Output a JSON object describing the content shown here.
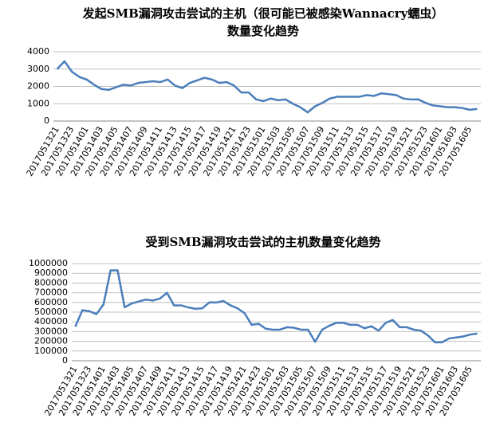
{
  "chart_data": [
    {
      "type": "line",
      "title": [
        "发起SMB漏洞攻击尝试的主机（很可能已被感染Wannacry蠕虫）",
        "数量变化趋势"
      ],
      "categories": [
        "2017051321",
        null,
        "2017051323",
        null,
        "2017051401",
        null,
        "2017051403",
        null,
        "2017051405",
        null,
        "2017051407",
        null,
        "2017051409",
        null,
        "2017051411",
        null,
        "2017051413",
        null,
        "2017051415",
        null,
        "2017051417",
        null,
        "2017051419",
        null,
        "2017051421",
        null,
        "2017051423",
        null,
        "2017051501",
        null,
        "2017051503",
        null,
        "2017051505",
        null,
        "2017051507",
        null,
        "2017051509",
        null,
        "2017051511",
        null,
        "2017051513",
        null,
        "2017051515",
        null,
        "2017051517",
        null,
        "2017051519",
        null,
        "2017051521",
        null,
        "2017051523",
        null,
        "2017051601",
        null,
        "2017051603",
        null,
        "2017051605",
        null
      ],
      "values": [
        3000,
        3450,
        2850,
        2550,
        2400,
        2100,
        1850,
        1800,
        1950,
        2100,
        2050,
        2200,
        2250,
        2300,
        2250,
        2400,
        2050,
        1900,
        2200,
        2350,
        2500,
        2400,
        2200,
        2250,
        2050,
        1650,
        1650,
        1250,
        1150,
        1300,
        1200,
        1250,
        1000,
        800,
        500,
        850,
        1050,
        1300,
        1400,
        1400,
        1400,
        1400,
        1500,
        1450,
        1600,
        1550,
        1500,
        1300,
        1250,
        1250,
        1050,
        900,
        850,
        800,
        800,
        750,
        650,
        700
      ],
      "color": "#4a7ebb",
      "ylim": [
        0,
        4000
      ],
      "yticks": [
        0,
        1000,
        2000,
        3000,
        4000
      ],
      "grid": true
    },
    {
      "type": "line",
      "title": [
        "受到SMB漏洞攻击尝试的主机数量变化趋势"
      ],
      "categories": [
        "2017051321",
        null,
        "2017051323",
        null,
        "2017051401",
        null,
        "2017051403",
        null,
        "2017051405",
        null,
        "2017051407",
        null,
        "2017051409",
        null,
        "2017051411",
        null,
        "2017051413",
        null,
        "2017051415",
        null,
        "2017051417",
        null,
        "2017051419",
        null,
        "2017051421",
        null,
        "2017051423",
        null,
        "2017051501",
        null,
        "2017051503",
        null,
        "2017051505",
        null,
        "2017051507",
        null,
        "2017051509",
        null,
        "2017051511",
        null,
        "2017051513",
        null,
        "2017051515",
        null,
        "2017051517",
        null,
        "2017051519",
        null,
        "2017051521",
        null,
        "2017051523",
        null,
        "2017051601",
        null,
        "2017051603",
        null,
        "2017051605",
        null
      ],
      "values": [
        350000,
        520000,
        510000,
        480000,
        580000,
        930000,
        930000,
        550000,
        590000,
        610000,
        630000,
        620000,
        640000,
        700000,
        570000,
        570000,
        550000,
        535000,
        540000,
        600000,
        600000,
        615000,
        570000,
        540000,
        490000,
        370000,
        380000,
        330000,
        320000,
        320000,
        345000,
        340000,
        320000,
        320000,
        195000,
        320000,
        360000,
        390000,
        390000,
        370000,
        370000,
        335000,
        355000,
        310000,
        390000,
        420000,
        345000,
        345000,
        320000,
        310000,
        260000,
        190000,
        190000,
        230000,
        240000,
        250000,
        270000,
        280000
      ],
      "color": "#4a7ebb",
      "ylim": [
        0,
        1000000
      ],
      "yticks": [
        0,
        100000,
        200000,
        300000,
        400000,
        500000,
        600000,
        700000,
        800000,
        900000,
        1000000
      ],
      "grid": true
    }
  ]
}
